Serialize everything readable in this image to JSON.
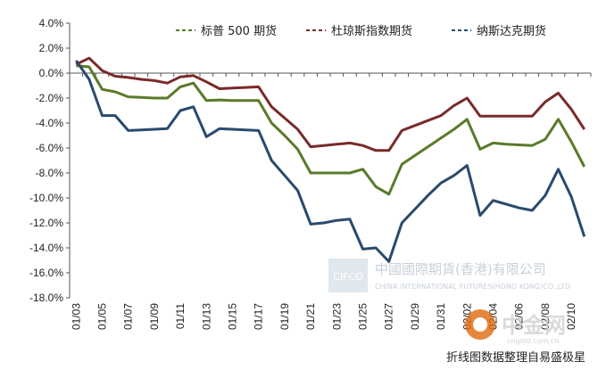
{
  "chart_data": {
    "type": "line",
    "title": "",
    "xlabel": "",
    "ylabel": "",
    "ylim": [
      -18,
      4
    ],
    "ytick_step": 2,
    "y_format": "percent_1dp",
    "grid": false,
    "legend_position": "top-right",
    "x": [
      "01/03",
      "01/04",
      "01/05",
      "01/06",
      "01/07",
      "01/08",
      "01/09",
      "01/10",
      "01/11",
      "01/12",
      "01/13",
      "01/14",
      "01/15",
      "01/16",
      "01/17",
      "01/18",
      "01/19",
      "01/20",
      "01/21",
      "01/22",
      "01/23",
      "01/24",
      "01/25",
      "01/26",
      "01/27",
      "01/28",
      "01/29",
      "01/30",
      "01/31",
      "02/01",
      "02/02",
      "02/03",
      "02/04",
      "02/05",
      "02/06",
      "02/07",
      "02/08",
      "02/09",
      "02/10",
      "02/11"
    ],
    "x_tick_labels": [
      "01/03",
      "01/05",
      "01/07",
      "01/09",
      "01/11",
      "01/13",
      "01/15",
      "01/17",
      "01/19",
      "01/21",
      "01/23",
      "01/25",
      "01/27",
      "01/29",
      "01/31",
      "02/02",
      "02/04",
      "02/06",
      "02/08",
      "02/10"
    ],
    "series": [
      {
        "name": "标普 500 期货",
        "color": "#5a7a2a",
        "values": [
          0.6,
          0.5,
          -1.3,
          -1.5,
          -1.9,
          -1.95,
          -2.0,
          -2.0,
          -1.1,
          -0.8,
          -2.2,
          -2.15,
          -2.2,
          -2.2,
          -2.2,
          -4.0,
          -5.0,
          -6.1,
          -8.0,
          -8.0,
          -8.0,
          -8.0,
          -7.7,
          -9.1,
          -9.7,
          -7.3,
          -6.6,
          -5.9,
          -5.2,
          -4.5,
          -3.7,
          -6.1,
          -5.6,
          -5.7,
          -5.75,
          -5.8,
          -5.3,
          -3.7,
          -5.5,
          -7.5
        ]
      },
      {
        "name": "杜琼斯指数期货",
        "color": "#7a2a2a",
        "values": [
          0.7,
          1.2,
          0.2,
          -0.25,
          -0.35,
          -0.5,
          -0.6,
          -0.8,
          -0.3,
          -0.2,
          -0.7,
          -1.25,
          -1.2,
          -1.15,
          -1.1,
          -2.7,
          -3.6,
          -4.5,
          -5.9,
          -5.8,
          -5.7,
          -5.6,
          -5.8,
          -6.2,
          -6.2,
          -4.6,
          -4.2,
          -3.8,
          -3.4,
          -2.6,
          -2.0,
          -3.45,
          -3.45,
          -3.45,
          -3.45,
          -3.45,
          -2.3,
          -1.6,
          -2.9,
          -4.5
        ]
      },
      {
        "name": "纳斯达克期货",
        "color": "#2a4a6e",
        "values": [
          1.0,
          -0.5,
          -3.4,
          -3.4,
          -4.6,
          -4.55,
          -4.5,
          -4.45,
          -3.0,
          -2.7,
          -5.1,
          -4.45,
          -4.5,
          -4.55,
          -4.6,
          -7.0,
          -8.2,
          -9.4,
          -12.1,
          -12.0,
          -11.8,
          -11.7,
          -14.1,
          -14.0,
          -15.1,
          -12.0,
          -10.9,
          -9.8,
          -8.8,
          -8.2,
          -7.4,
          -11.4,
          -10.2,
          -10.5,
          -10.8,
          -11.0,
          -9.8,
          -7.7,
          -9.9,
          -13.1
        ]
      }
    ]
  },
  "watermark": {
    "company_cn": "中國國際期貨(香港)有限公司",
    "company_en": "CHINA INTERNATIONAL FUTURES(HONG KONG)CO.,LTD",
    "logo_text": "CIFCO",
    "site_cn": "中金网",
    "site_url": "cngold.com.cn"
  },
  "caption": "折线图数据整理自易盛极星",
  "colors": {
    "axis": "#555555",
    "logo_accent": "#e06a10",
    "watermark": "#c8d4e0"
  }
}
